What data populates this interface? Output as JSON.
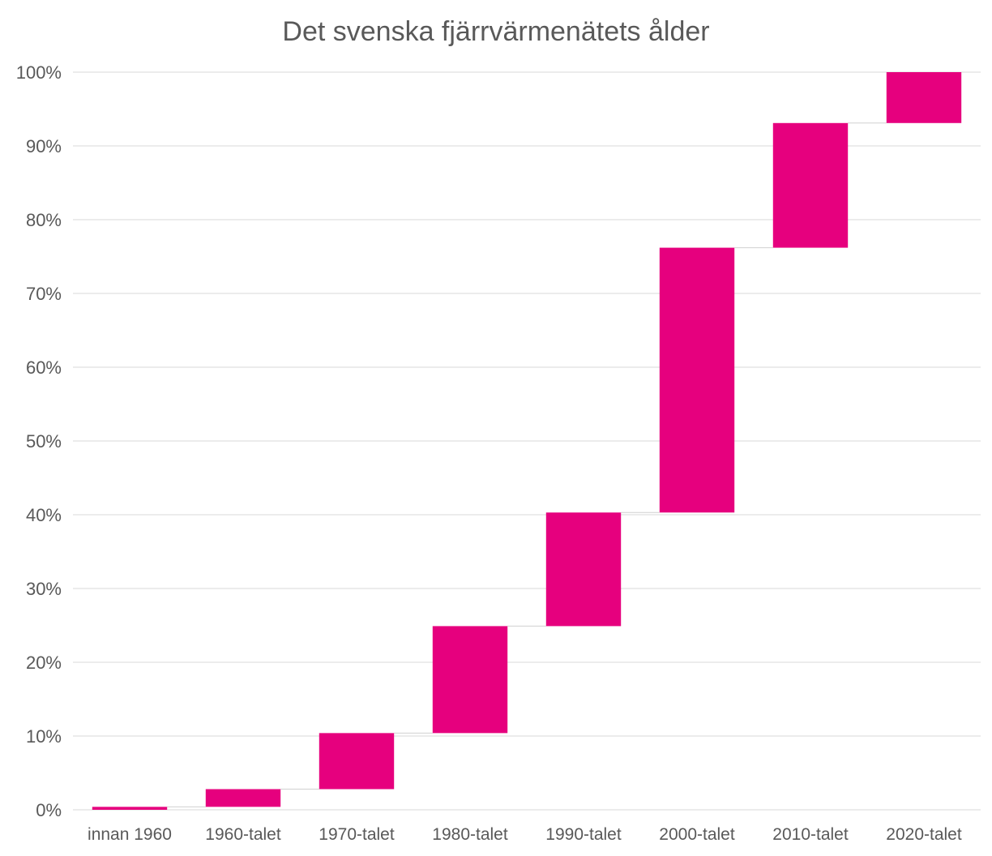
{
  "chart_data": {
    "type": "bar",
    "subtype": "waterfall",
    "title": "Det svenska fjärrvärmenätets ålder",
    "xlabel": "",
    "ylabel": "",
    "categories": [
      "innan 1960",
      "1960-talet",
      "1970-talet",
      "1980-talet",
      "1990-talet",
      "2000-talet",
      "2010-talet",
      "2020-talet"
    ],
    "series": [
      {
        "start": [
          0.0,
          0.4,
          2.8,
          10.4,
          24.9,
          40.3,
          76.2,
          93.1
        ],
        "end": [
          0.4,
          2.8,
          10.4,
          24.9,
          40.3,
          76.2,
          93.1,
          100.0
        ]
      }
    ],
    "ylim": [
      0,
      100
    ],
    "yticks": [
      0,
      10,
      20,
      30,
      40,
      50,
      60,
      70,
      80,
      90,
      100
    ],
    "ytick_labels": [
      "0%",
      "10%",
      "20%",
      "30%",
      "40%",
      "50%",
      "60%",
      "70%",
      "80%",
      "90%",
      "100%"
    ],
    "grid": true,
    "legend": "none",
    "colors": {
      "bar": "#e6007e",
      "grid": "#d9d9d9",
      "text": "#595959"
    }
  }
}
